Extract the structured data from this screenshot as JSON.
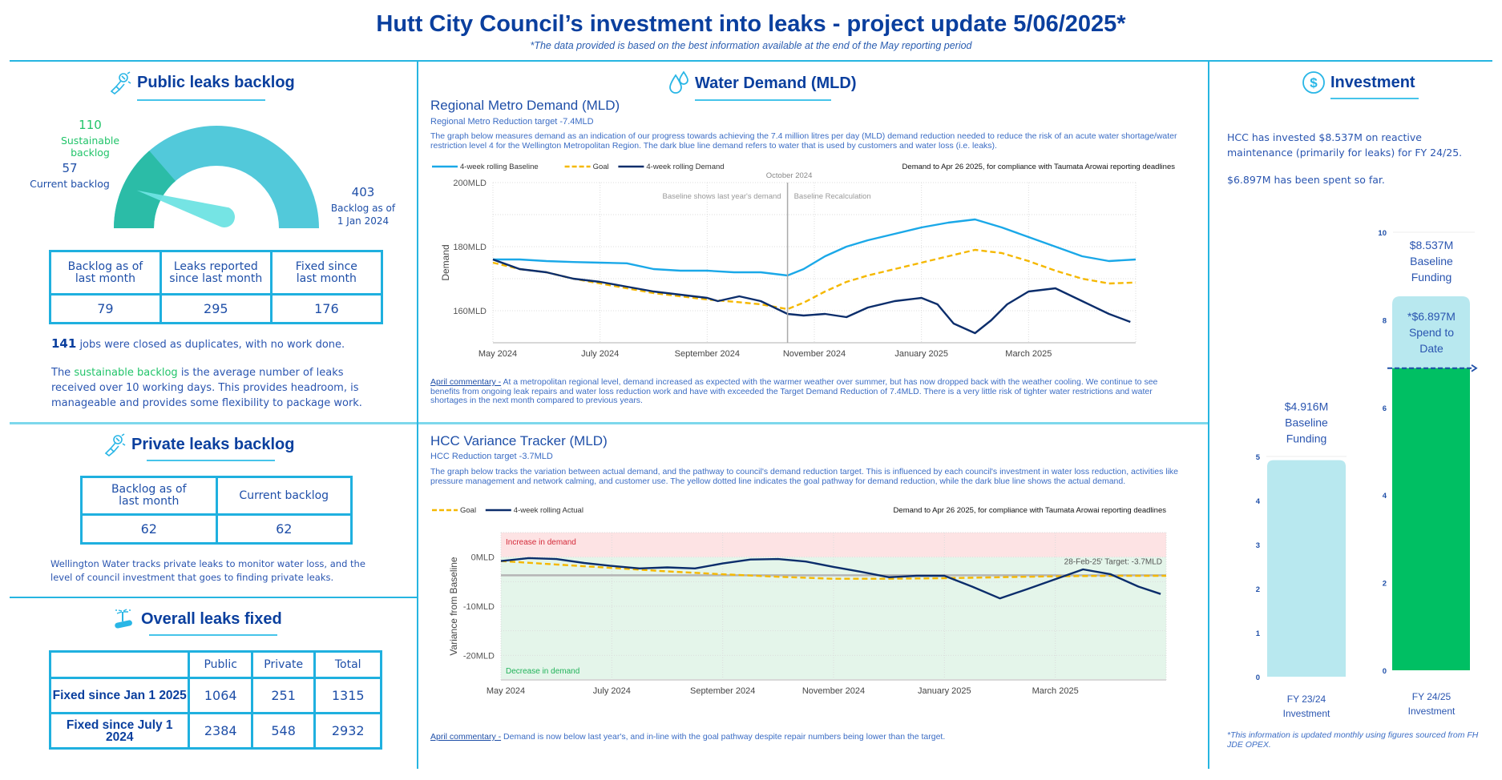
{
  "header": {
    "title": "Hutt City Council’s investment into leaks - project update 5/06/2025*",
    "subtitle": "*The data provided is based on the best information available at the end of the May reporting period"
  },
  "public_backlog": {
    "heading": "Public leaks backlog",
    "icon": "wrench-hand-icon",
    "gauge": {
      "sustainable_value": "110",
      "sustainable_label": "Sustainable backlog",
      "current_value": "57",
      "current_label": "Current backlog",
      "max_value": "403",
      "max_label_line1": "Backlog as of",
      "max_label_line2": "1 Jan 2024",
      "current": 57,
      "sustainable": 110,
      "max": 403,
      "colors": {
        "sustainable": "#2bbca7",
        "remaining": "#52c9da",
        "needle": "#6ee3e3"
      }
    },
    "table": {
      "headers": [
        [
          "Backlog as of",
          "last month"
        ],
        [
          "Leaks reported",
          "since last month"
        ],
        [
          "Fixed since",
          "last month"
        ]
      ],
      "values": [
        "79",
        "295",
        "176"
      ]
    },
    "duplicates_count": "141",
    "duplicates_text": " jobs were closed as duplicates, with no work done.",
    "note_prefix": "The ",
    "note_highlight": "sustainable backlog",
    "note_rest": " is the average number of leaks received over 10 working days. This provides headroom, is manageable and provides some flexibility to package work."
  },
  "private_backlog": {
    "heading": "Private leaks backlog",
    "icon": "wrench-hand-icon",
    "table": {
      "headers": [
        [
          "Backlog as of",
          "last month"
        ],
        [
          "Current backlog"
        ]
      ],
      "values": [
        "62",
        "62"
      ]
    },
    "note": "Wellington Water tracks private leaks to monitor water loss, and the level of council investment that goes to finding private leaks."
  },
  "overall_fixed": {
    "heading": "Overall leaks fixed",
    "icon": "burst-pipe-icon",
    "columns": [
      "",
      "Public",
      "Private",
      "Total"
    ],
    "rows": [
      {
        "label": "Fixed since Jan 1 2025",
        "values": [
          "1064",
          "251",
          "1315"
        ]
      },
      {
        "label": "Fixed since July 1 2024",
        "values": [
          "2384",
          "548",
          "2932"
        ]
      }
    ]
  },
  "water_demand": {
    "heading": "Water Demand (MLD)",
    "icon": "water-drops-icon",
    "regional": {
      "title": "Regional Metro Demand (MLD)",
      "target": "Regional Metro Reduction target -7.4MLD",
      "description": "The graph below measures demand as an indication of our progress towards achieving the 7.4 million litres per day (MLD) demand reduction needed to reduce the risk of an acute water shortage/water restriction level 4 for the Wellington Metropolitan Region. The dark blue line demand refers to water that is used by customers and water loss (i.e. leaks).",
      "commentary_label": "April commentary -",
      "commentary": " At a metropolitan regional level, demand increased as expected with the warmer weather over summer, but has now dropped back with the weather cooling. We continue to see benefits from ongoing leak repairs and water loss reduction work and have with exceeded the Target Demand Reduction of 7.4MLD. There is a very little risk of tighter water restrictions and water shortages in the next month compared to previous years."
    },
    "hcc": {
      "title": "HCC Variance Tracker (MLD)",
      "target": "HCC Reduction target -3.7MLD",
      "description": "The graph below tracks the variation between actual demand, and the pathway to council's demand reduction target. This is influenced by each council's investment in water loss reduction, activities like pressure management and network calming, and customer use. The yellow dotted line indicates the goal pathway for demand reduction, while the dark blue line shows the actual demand.",
      "commentary_label": "April commentary -",
      "commentary": " Demand is now below last year's, and in-line with the goal pathway despite repair numbers being lower than the target."
    }
  },
  "investment": {
    "heading": "Investment",
    "icon": "dollar-circle-icon",
    "text1": "HCC has invested $8.537M on reactive maintenance (primarily for leaks) for FY 24/25.",
    "text2": "$6.897M has been spent so far.",
    "footnote": "*This information is updated monthly using figures sourced from FH JDE OPEX."
  },
  "chart_data": [
    {
      "type": "line",
      "title": "Regional Metro Demand (MLD)",
      "note": "Demand to Apr 26 2025, for compliance with Taumata Arowai reporting deadlines",
      "xlabel": "",
      "ylabel": "Demand",
      "x_ticks": [
        "May 2024",
        "July 2024",
        "September 2024",
        "November 2024",
        "January 2025",
        "March 2025"
      ],
      "y_ticks": [
        "160MLD",
        "180MLD",
        "200MLD"
      ],
      "ylim": [
        150,
        200
      ],
      "x_range_months": [
        0,
        12
      ],
      "grid": true,
      "legend": "top-left",
      "annotations": [
        {
          "text": "October 2024",
          "x": 5.5,
          "kind": "vline-label"
        },
        {
          "text": "Baseline shows last year's demand",
          "kind": "left-of-vline"
        },
        {
          "text": "Baseline Recalculation",
          "kind": "right-of-vline"
        }
      ],
      "series": [
        {
          "name": "4-week rolling Baseline",
          "color": "#1aa8e8",
          "style": "solid",
          "x": [
            0,
            0.5,
            1,
            1.5,
            2,
            2.5,
            3,
            3.5,
            4,
            4.5,
            5,
            5.5,
            5.8,
            6.2,
            6.6,
            7,
            7.5,
            8,
            8.5,
            9,
            9.5,
            10,
            10.5,
            11,
            11.5,
            12
          ],
          "y": [
            176,
            176,
            175.5,
            175.2,
            175,
            174.8,
            173,
            172.5,
            172.5,
            172,
            172,
            171,
            173,
            177,
            180,
            182,
            184,
            186,
            187.5,
            188.5,
            186,
            183,
            180,
            177,
            175.5,
            176
          ]
        },
        {
          "name": "Goal",
          "color": "#f5b800",
          "style": "dashed",
          "x": [
            0,
            0.5,
            1,
            1.5,
            2,
            2.5,
            3,
            3.5,
            4,
            4.5,
            5,
            5.5,
            5.8,
            6.2,
            6.6,
            7,
            7.5,
            8,
            8.5,
            9,
            9.5,
            10,
            10.5,
            11,
            11.5,
            12
          ],
          "y": [
            175,
            173,
            172,
            170,
            168.5,
            167,
            165.5,
            164.5,
            163.5,
            162.8,
            162,
            160.5,
            162.5,
            166,
            169,
            171,
            173,
            175,
            177,
            179,
            178,
            175.5,
            172.5,
            170,
            168.5,
            168.8
          ]
        },
        {
          "name": "4-week rolling Demand",
          "color": "#0b2d6b",
          "style": "solid",
          "x": [
            0,
            0.5,
            1,
            1.5,
            2,
            2.5,
            3,
            3.5,
            4,
            4.2,
            4.6,
            5,
            5.5,
            5.8,
            6.2,
            6.6,
            7,
            7.5,
            8,
            8.3,
            8.6,
            9,
            9.3,
            9.6,
            10,
            10.5,
            11,
            11.5,
            11.9
          ],
          "y": [
            176,
            173,
            172,
            170,
            169,
            167.5,
            166,
            165,
            164,
            163,
            164.5,
            163,
            159,
            158.5,
            159,
            158,
            161,
            163,
            164,
            162,
            156,
            153,
            157,
            162,
            166,
            167,
            163,
            159,
            156.5
          ]
        }
      ]
    },
    {
      "type": "line",
      "title": "HCC Variance Tracker (MLD)",
      "note": "Demand to Apr 26 2025, for compliance with Taumata Arowai reporting deadlines",
      "xlabel": "",
      "ylabel": "Variance from Baseline",
      "x_ticks": [
        "May 2024",
        "July 2024",
        "September 2024",
        "November 2024",
        "January 2025",
        "March 2025"
      ],
      "y_ticks": [
        "0MLD",
        "-10MLD",
        "-20MLD"
      ],
      "ylim": [
        -25,
        5
      ],
      "x_range_months": [
        0,
        12
      ],
      "grid": true,
      "legend": "top-left",
      "bands": [
        {
          "label": "Increase in demand",
          "from": 0,
          "to": 5,
          "color": "#fde3e4"
        },
        {
          "label": "Decrease in demand",
          "from": -25,
          "to": 0,
          "color": "#e4f5ea"
        }
      ],
      "reference_line": {
        "value": -3.7,
        "label": "28-Feb-25' Target: -3.7MLD",
        "color": "#b5b5b5"
      },
      "series": [
        {
          "name": "Goal",
          "color": "#f5b800",
          "style": "dashed",
          "x": [
            0,
            1,
            2,
            3,
            4,
            5,
            6,
            7,
            8,
            9,
            10,
            11,
            12
          ],
          "y": [
            -0.8,
            -1.5,
            -2.2,
            -2.9,
            -3.5,
            -4.0,
            -4.4,
            -4.4,
            -4.3,
            -4.1,
            -3.9,
            -3.8,
            -3.8
          ]
        },
        {
          "name": "4-week rolling Actual",
          "color": "#0b2d6b",
          "style": "solid",
          "x": [
            0,
            0.5,
            1,
            1.5,
            2,
            2.5,
            3,
            3.5,
            4,
            4.5,
            5,
            5.5,
            6,
            6.5,
            7,
            7.5,
            8,
            8.5,
            9,
            9.5,
            10,
            10.5,
            11,
            11.5,
            11.9
          ],
          "y": [
            -0.8,
            -0.2,
            -0.4,
            -1.2,
            -1.8,
            -2.3,
            -2.1,
            -2.3,
            -1.3,
            -0.5,
            -0.4,
            -0.9,
            -2.0,
            -3.0,
            -4.1,
            -3.8,
            -3.8,
            -6.0,
            -8.4,
            -6.5,
            -4.5,
            -2.5,
            -3.5,
            -6.0,
            -7.5
          ]
        }
      ]
    },
    {
      "type": "bar",
      "title": "Investment",
      "categories": [
        "FY 23/24 Investment",
        "FY 24/25 Investment"
      ],
      "series": [
        {
          "name": "Baseline Funding",
          "values": [
            4.916,
            8.537
          ],
          "color": "#b8e8ef"
        },
        {
          "name": "Spend to Date",
          "values": [
            null,
            6.897
          ],
          "color": "#00bf63"
        }
      ],
      "bar_labels": [
        [
          "$4.916M",
          "Baseline",
          "Funding"
        ],
        [
          "$8.537M",
          "Baseline",
          "Funding"
        ],
        [
          "*$6.897M",
          "Spend to",
          "Date"
        ]
      ],
      "axis_left": {
        "ticks": [
          "0",
          "1",
          "2",
          "3",
          "4",
          "5"
        ],
        "ylim": [
          0,
          5
        ]
      },
      "axis_right": {
        "ticks": [
          "0",
          "2",
          "4",
          "6",
          "8",
          "10"
        ],
        "ylim": [
          0,
          10
        ]
      },
      "units": "$M"
    }
  ]
}
